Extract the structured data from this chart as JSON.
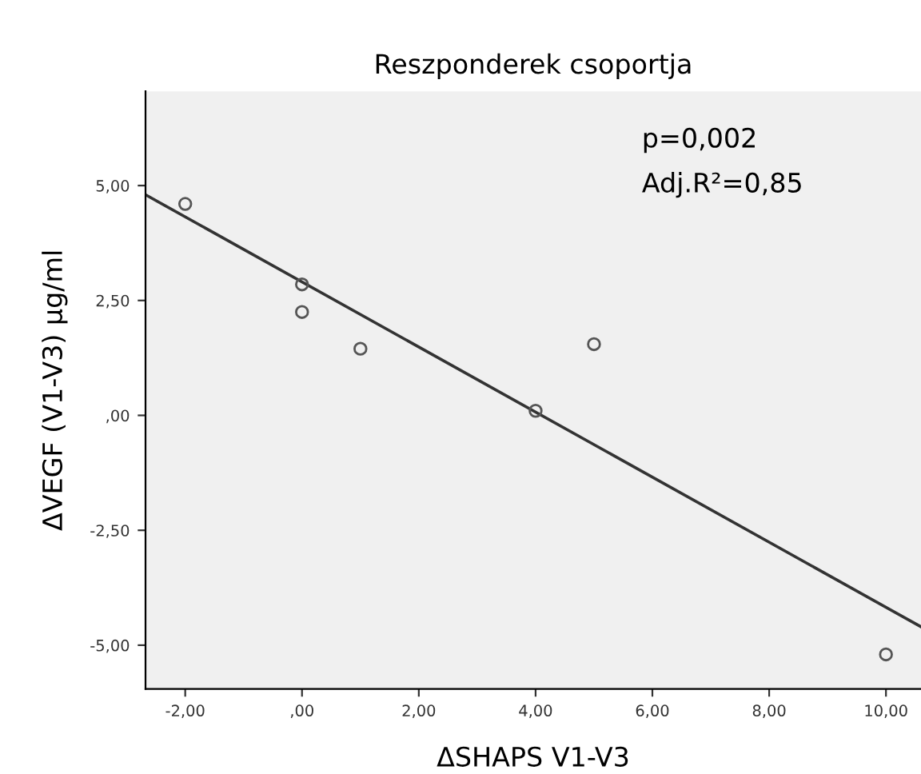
{
  "chart_data": {
    "type": "scatter",
    "title": "Reszponderek csoportja",
    "xlabel": "ΔSHAPS V1-V3",
    "ylabel": "ΔVEGF (V1-V3) µg/ml",
    "xlim": [
      -2.68,
      10.6
    ],
    "ylim": [
      -5.95,
      7.05
    ],
    "xticks": [
      {
        "value": -2,
        "label": "-2,00"
      },
      {
        "value": 0,
        "label": ",00"
      },
      {
        "value": 2,
        "label": "2,00"
      },
      {
        "value": 4,
        "label": "4,00"
      },
      {
        "value": 6,
        "label": "6,00"
      },
      {
        "value": 8,
        "label": "8,00"
      },
      {
        "value": 10,
        "label": "10,00"
      }
    ],
    "yticks": [
      {
        "value": -5,
        "label": "-5,00"
      },
      {
        "value": -2.5,
        "label": "-2,50"
      },
      {
        "value": 0,
        "label": ",00"
      },
      {
        "value": 2.5,
        "label": "2,50"
      },
      {
        "value": 5,
        "label": "5,00"
      }
    ],
    "grid": false,
    "series": [
      {
        "marker": "circle",
        "color": "#555555",
        "x": [
          -2,
          0,
          0,
          1,
          4,
          5,
          10
        ],
        "values": [
          4.6,
          2.85,
          2.25,
          1.45,
          0.1,
          1.55,
          -5.2
        ]
      },
      {
        "type": "line",
        "marker": "none",
        "color": "#333333",
        "x": [
          -2.68,
          10.6
        ],
        "values": [
          4.8,
          -4.6
        ]
      }
    ],
    "annotations": [
      "p=0,002",
      "Adj.R²=0,85"
    ]
  }
}
